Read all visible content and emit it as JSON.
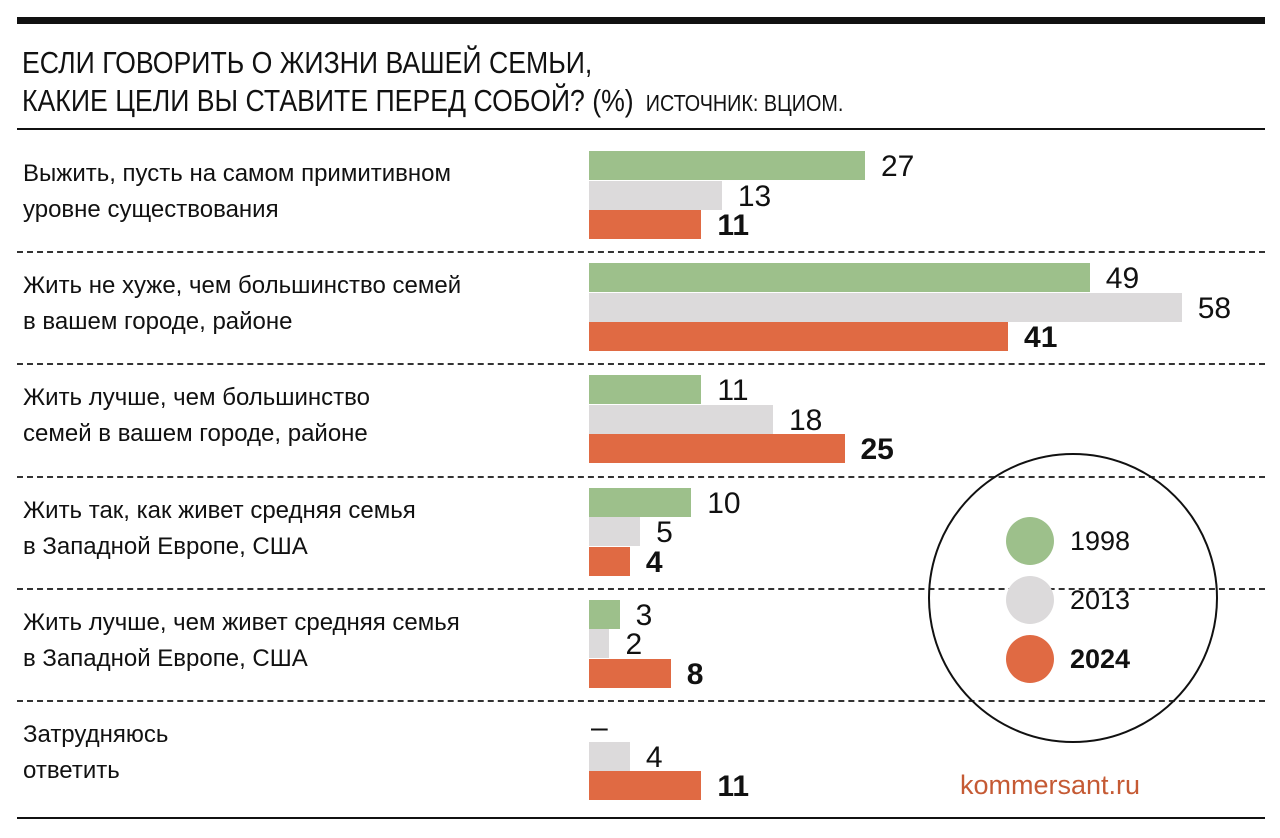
{
  "title_line1": "ЕСЛИ ГОВОРИТЬ О ЖИЗНИ ВАШЕЙ СЕМЬИ,",
  "title_line2": "КАКИЕ ЦЕЛИ ВЫ СТАВИТЕ ПЕРЕД СОБОЙ? (%)",
  "source": "ИСТОЧНИК: ВЦИОМ.",
  "brand": "kommersant.ru",
  "chart_data": {
    "type": "bar",
    "orientation": "horizontal",
    "unit": "%",
    "categories": [
      [
        "Выжить, пусть на самом примитивном",
        "уровне существования"
      ],
      [
        "Жить не хуже, чем большинство семей",
        "в вашем городе, районе"
      ],
      [
        "Жить лучше, чем большинство",
        "семей в вашем городе, районе"
      ],
      [
        "Жить так, как живет средняя семья",
        "в Западной Европе, США"
      ],
      [
        "Жить лучше, чем живет средняя семья",
        "в Западной Европе, США"
      ],
      [
        "Затрудняюсь",
        "ответить"
      ]
    ],
    "series": [
      {
        "name": "1998",
        "color": "#9dc08b",
        "values": [
          27,
          49,
          11,
          10,
          3,
          null
        ],
        "labels": [
          "27",
          "49",
          "11",
          "10",
          "3",
          "–"
        ]
      },
      {
        "name": "2013",
        "color": "#dcdadb",
        "values": [
          13,
          58,
          18,
          5,
          2,
          4
        ],
        "labels": [
          "13",
          "58",
          "18",
          "5",
          "2",
          "4"
        ]
      },
      {
        "name": "2024",
        "color": "#e06a43",
        "values": [
          11,
          41,
          25,
          4,
          8,
          11
        ],
        "labels": [
          "11",
          "41",
          "25",
          "4",
          "8",
          "11"
        ],
        "bold": true
      }
    ],
    "legend_placement": "bottom-right",
    "grid": false
  }
}
